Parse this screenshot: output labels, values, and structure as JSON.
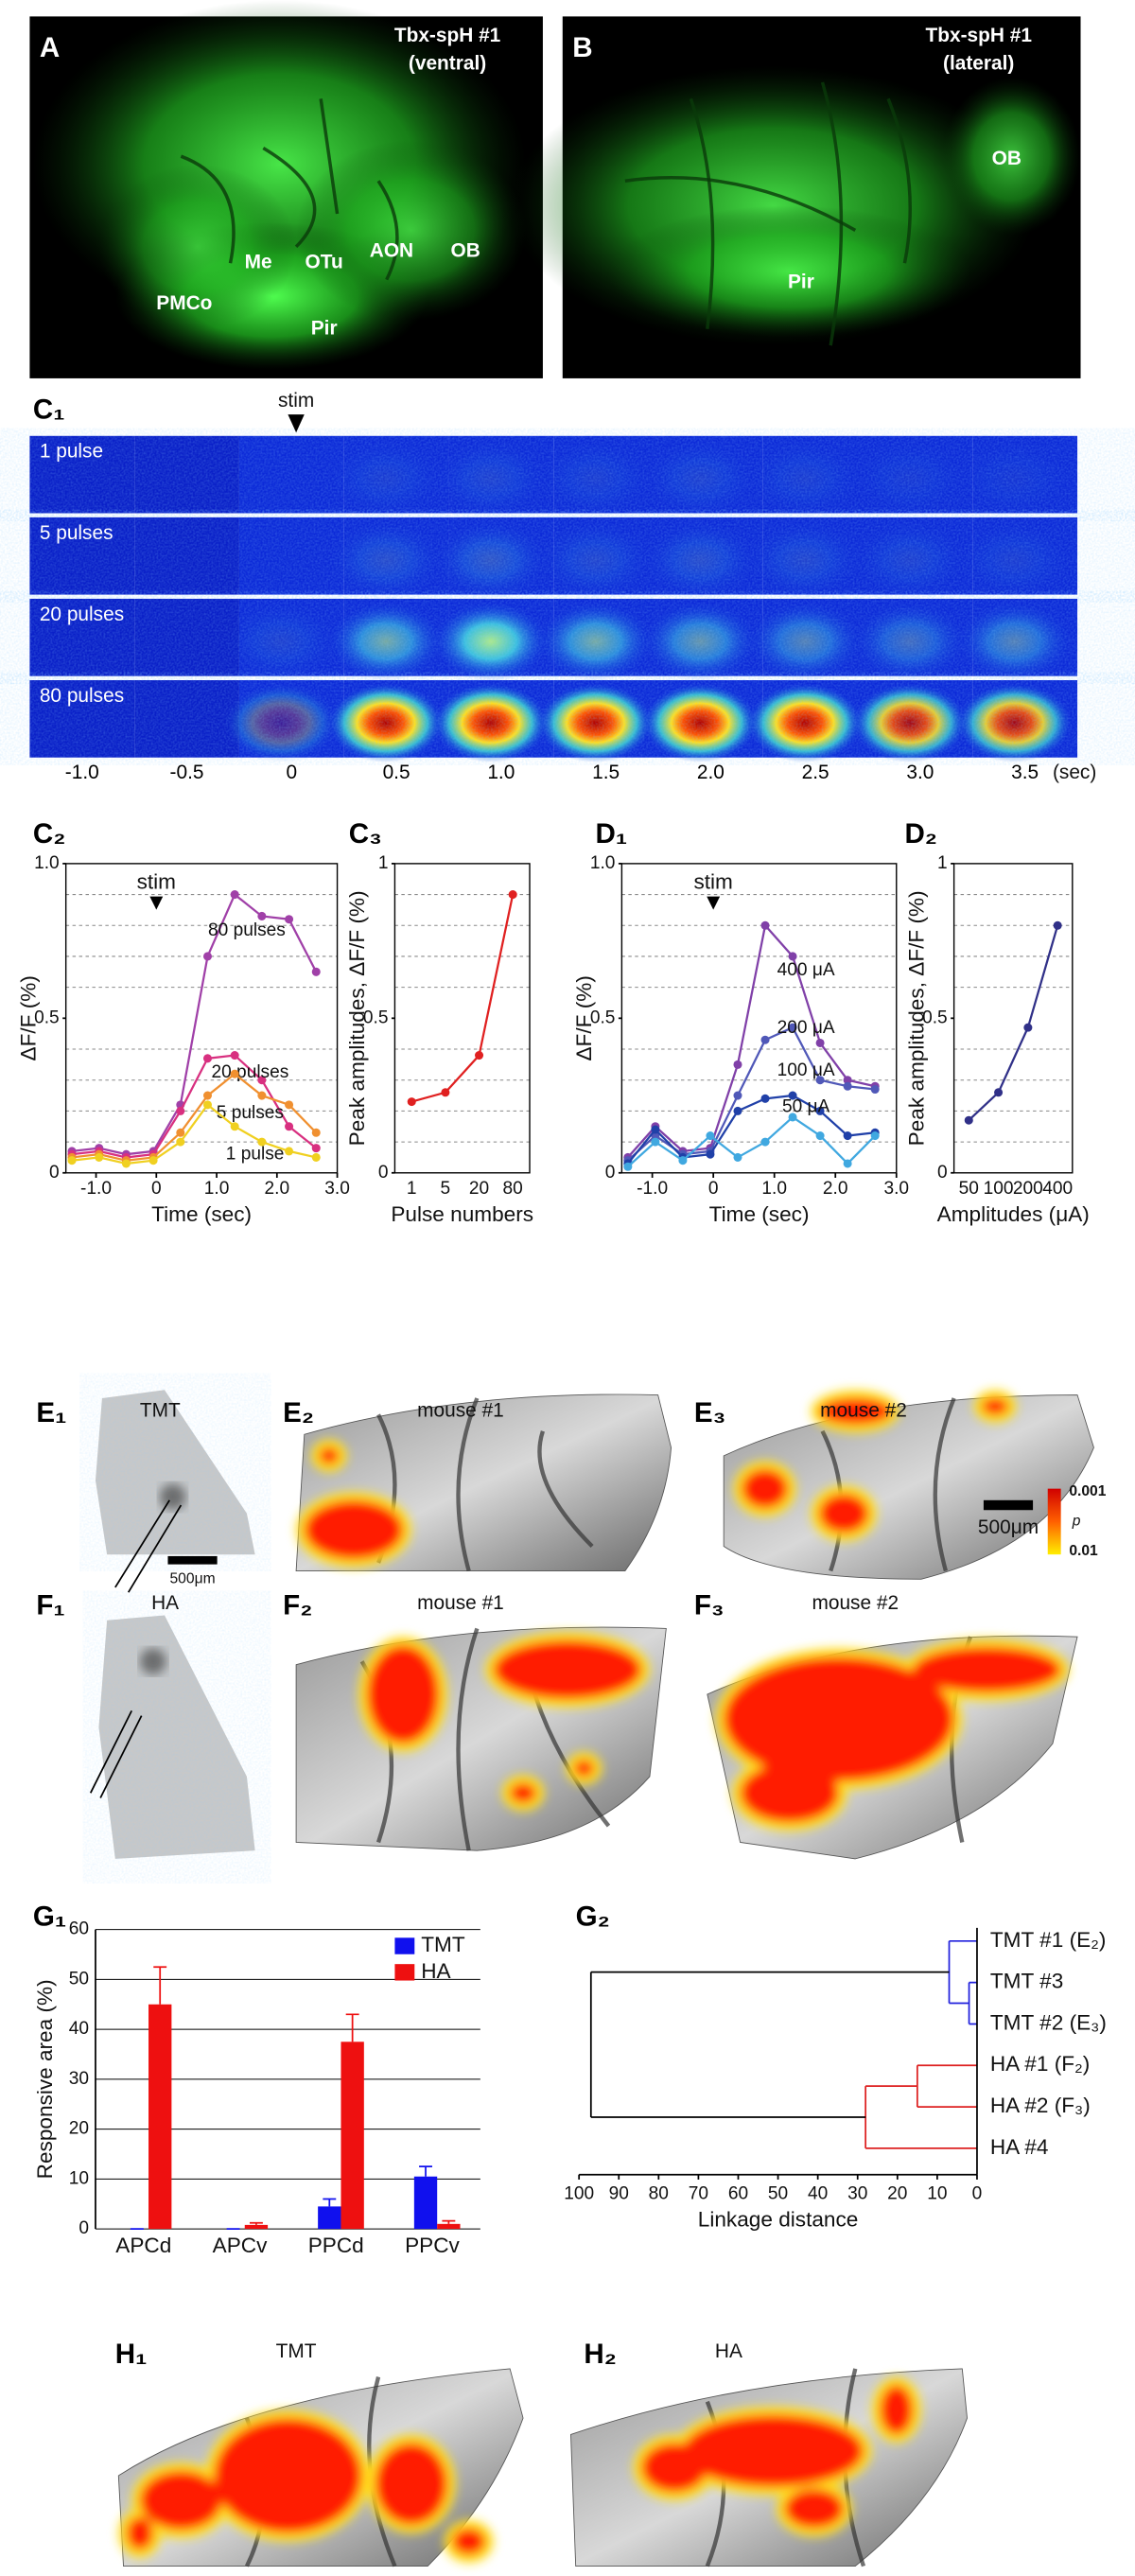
{
  "figure": {
    "A": {
      "label": "A",
      "title": [
        "Tbx-spH #1",
        "(ventral)"
      ],
      "regions": [
        "Me",
        "OTu",
        "AON",
        "OB",
        "PMCo",
        "Pir"
      ]
    },
    "B": {
      "label": "B",
      "title": [
        "Tbx-spH #1",
        "(lateral)"
      ],
      "regions": [
        "OB",
        "Pir"
      ]
    },
    "C1": {
      "label": "C₁",
      "stim": "stim",
      "rows": [
        "1 pulse",
        "5 pulses",
        "20 pulses",
        "80 pulses"
      ],
      "ticks": [
        "-1.0",
        "-0.5",
        "0",
        "0.5",
        "1.0",
        "1.5",
        "2.0",
        "2.5",
        "3.0",
        "3.5"
      ],
      "unit": "(sec)"
    },
    "E1": {
      "label": "E₁",
      "odor": "TMT",
      "scale": "500μm"
    },
    "E2": {
      "label": "E₂",
      "title": "mouse #1"
    },
    "E3": {
      "label": "E₃",
      "title": "mouse #2",
      "scale": "500μm",
      "colorbar": [
        "0.001",
        "p",
        "0.01"
      ]
    },
    "F1": {
      "label": "F₁",
      "odor": "HA"
    },
    "F2": {
      "label": "F₂",
      "title": "mouse #1"
    },
    "F3": {
      "label": "F₃",
      "title": "mouse #2"
    },
    "H1": {
      "label": "H₁",
      "odor": "TMT"
    },
    "H2": {
      "label": "H₂",
      "odor": "HA"
    }
  },
  "chart_data": [
    {
      "type": "line",
      "label": "C₂",
      "annotation": "stim",
      "annotation_x": 0,
      "x": [
        -1.4,
        -0.95,
        -0.5,
        -0.05,
        0.4,
        0.85,
        1.3,
        1.75,
        2.2,
        2.65
      ],
      "xlim": [
        -1.5,
        3.0
      ],
      "xticks": [
        {
          "value": -1,
          "label": "-1.0"
        },
        0,
        {
          "value": 1,
          "label": "1.0"
        },
        {
          "value": 2,
          "label": "2.0"
        },
        {
          "value": 3,
          "label": "3.0"
        }
      ],
      "ylim": [
        0,
        1
      ],
      "yticks": [
        0,
        0.5,
        {
          "value": 1,
          "label": "1.0"
        }
      ],
      "minor_yticks": [
        0.1,
        0.2,
        0.3,
        0.4,
        0.6,
        0.7,
        0.8,
        0.9
      ],
      "xlabel": "Time (sec)",
      "ylabel": "ΔF/F (%)",
      "series": [
        {
          "name": "80 pulses",
          "color": "#a040a8",
          "values": [
            0.07,
            0.08,
            0.06,
            0.07,
            0.22,
            0.7,
            0.9,
            0.83,
            0.82,
            0.65
          ]
        },
        {
          "name": "20 pulses",
          "color": "#d83080",
          "values": [
            0.06,
            0.07,
            0.05,
            0.06,
            0.2,
            0.37,
            0.38,
            0.3,
            0.15,
            0.08
          ]
        },
        {
          "name": "5 pulses",
          "color": "#f09030",
          "values": [
            0.05,
            0.06,
            0.04,
            0.05,
            0.13,
            0.25,
            0.32,
            0.25,
            0.22,
            0.13
          ]
        },
        {
          "name": "1 pulse",
          "color": "#f0d020",
          "values": [
            0.04,
            0.05,
            0.03,
            0.04,
            0.1,
            0.22,
            0.15,
            0.1,
            0.07,
            0.05
          ]
        }
      ]
    },
    {
      "type": "line",
      "label": "C₃",
      "categories": [
        "1",
        "5",
        "20",
        "80"
      ],
      "ylim": [
        0,
        1
      ],
      "yticks": [
        0,
        0.5,
        1
      ],
      "minor_yticks": [
        0.1,
        0.2,
        0.3,
        0.4,
        0.6,
        0.7,
        0.8,
        0.9
      ],
      "xlabel": "Pulse numbers",
      "ylabel": "Peak amplitudes, ΔF/F (%)",
      "series": [
        {
          "color": "#e02020",
          "values": [
            0.23,
            0.26,
            0.38,
            0.9
          ]
        }
      ]
    },
    {
      "type": "line",
      "label": "D₁",
      "annotation": "stim",
      "annotation_x": 0,
      "x": [
        -1.4,
        -0.95,
        -0.5,
        -0.05,
        0.4,
        0.85,
        1.3,
        1.75,
        2.2,
        2.65
      ],
      "xlim": [
        -1.5,
        3.0
      ],
      "xticks": [
        {
          "value": -1,
          "label": "-1.0"
        },
        0,
        {
          "value": 1,
          "label": "1.0"
        },
        {
          "value": 2,
          "label": "2.0"
        },
        {
          "value": 3,
          "label": "3.0"
        }
      ],
      "ylim": [
        0,
        1
      ],
      "yticks": [
        0,
        0.5,
        {
          "value": 1,
          "label": "1.0"
        }
      ],
      "minor_yticks": [
        0.1,
        0.2,
        0.3,
        0.4,
        0.6,
        0.7,
        0.8,
        0.9
      ],
      "xlabel": "Time (sec)",
      "ylabel": "ΔF/F (%)",
      "series": [
        {
          "name": "400 μA",
          "color": "#8040a8",
          "values": [
            0.05,
            0.15,
            0.07,
            0.08,
            0.35,
            0.8,
            0.7,
            0.42,
            0.3,
            0.28
          ]
        },
        {
          "name": "200 μA",
          "color": "#5058b8",
          "values": [
            0.04,
            0.12,
            0.06,
            0.07,
            0.25,
            0.43,
            0.47,
            0.3,
            0.28,
            0.27
          ]
        },
        {
          "name": "100 μA",
          "color": "#2040a8",
          "values": [
            0.03,
            0.14,
            0.05,
            0.06,
            0.2,
            0.24,
            0.25,
            0.2,
            0.12,
            0.13
          ]
        },
        {
          "name": "50 μA",
          "color": "#40a8e0",
          "values": [
            0.02,
            0.1,
            0.04,
            0.12,
            0.05,
            0.1,
            0.18,
            0.12,
            0.03,
            0.12
          ]
        }
      ]
    },
    {
      "type": "line",
      "label": "D₂",
      "categories": [
        "50",
        "100",
        "200",
        "400"
      ],
      "ylim": [
        0,
        1
      ],
      "yticks": [
        0,
        0.5,
        1
      ],
      "minor_yticks": [
        0.1,
        0.2,
        0.3,
        0.4,
        0.6,
        0.7,
        0.8,
        0.9
      ],
      "xlabel": "Amplitudes (μA)",
      "ylabel": "Peak amplitudes, ΔF/F (%)",
      "series": [
        {
          "color": "#303088",
          "values": [
            0.17,
            0.26,
            0.47,
            0.8
          ]
        }
      ]
    },
    {
      "type": "bar",
      "label": "G₁",
      "categories": [
        "APCd",
        "APCv",
        "PPCd",
        "PPCv"
      ],
      "ylim": [
        0,
        60
      ],
      "yticks": [
        0,
        10,
        20,
        30,
        40,
        50,
        60
      ],
      "grid": true,
      "legend": "upper right",
      "ylabel": "Responsive area (%)",
      "series": [
        {
          "name": "TMT",
          "color": "#1010ee",
          "values": [
            0,
            0,
            4.5,
            10.5
          ],
          "errors": [
            0,
            0,
            1.5,
            2
          ]
        },
        {
          "name": "HA",
          "color": "#ee1010",
          "values": [
            45,
            0.8,
            37.5,
            1
          ],
          "errors": [
            7.5,
            0.4,
            5.5,
            0.6
          ]
        }
      ]
    },
    {
      "type": "dendrogram",
      "label": "G₂",
      "leaves": [
        "TMT #1 (E₂)",
        "TMT #3",
        "TMT #2 (E₃)",
        "HA #1 (F₂)",
        "HA #2 (F₃)",
        "HA #4"
      ],
      "merges": [
        {
          "left": 1,
          "right": 2,
          "distance": 2,
          "color": "#2020dd"
        },
        {
          "left": 0,
          "right": 6,
          "distance": 7,
          "color": "#2020dd"
        },
        {
          "left": 3,
          "right": 4,
          "distance": 15,
          "color": "#dd2020"
        },
        {
          "left": 8,
          "right": 5,
          "distance": 28,
          "color": "#dd2020"
        },
        {
          "left": 7,
          "right": 9,
          "distance": 97,
          "color": "#000000"
        }
      ],
      "xlim": [
        100,
        0
      ],
      "xticks": [
        100,
        90,
        80,
        70,
        60,
        50,
        40,
        30,
        20,
        10,
        0
      ],
      "xlabel": "Linkage distance"
    }
  ]
}
